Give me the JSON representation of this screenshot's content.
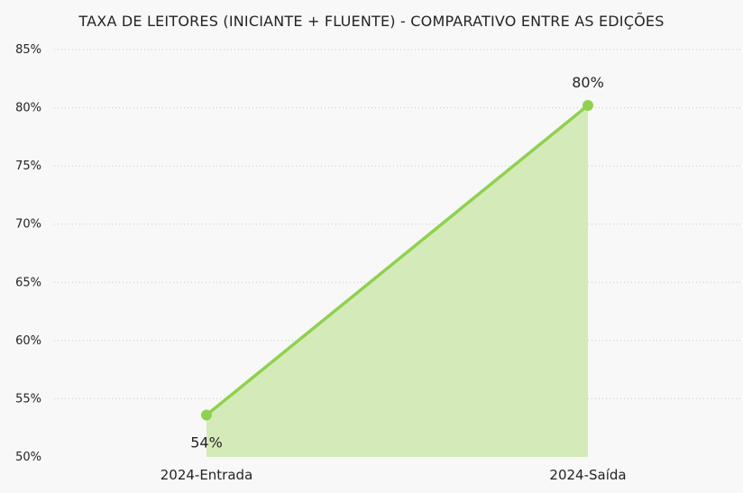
{
  "chart_data": {
    "type": "area",
    "title": "TAXA DE LEITORES (INICIANTE + FLUENTE) - COMPARATIVO ENTRE AS EDIÇÕES",
    "categories": [
      "2024-Entrada",
      "2024-Saída"
    ],
    "series": [
      {
        "values": [
          53.6,
          80.2
        ],
        "data_labels": [
          "54%",
          "80%"
        ]
      }
    ],
    "y_ticks": [
      50,
      55,
      60,
      65,
      70,
      75,
      80,
      85
    ],
    "y_tick_labels": [
      "50%",
      "55%",
      "60%",
      "65%",
      "70%",
      "75%",
      "80%",
      "85%"
    ],
    "ylim": [
      50,
      85
    ],
    "grid": true,
    "legend": "none",
    "colors": {
      "line": "#8fd14f",
      "area": "#d4ebb9",
      "grid": "#c8c8c8",
      "text": "#252423"
    }
  }
}
